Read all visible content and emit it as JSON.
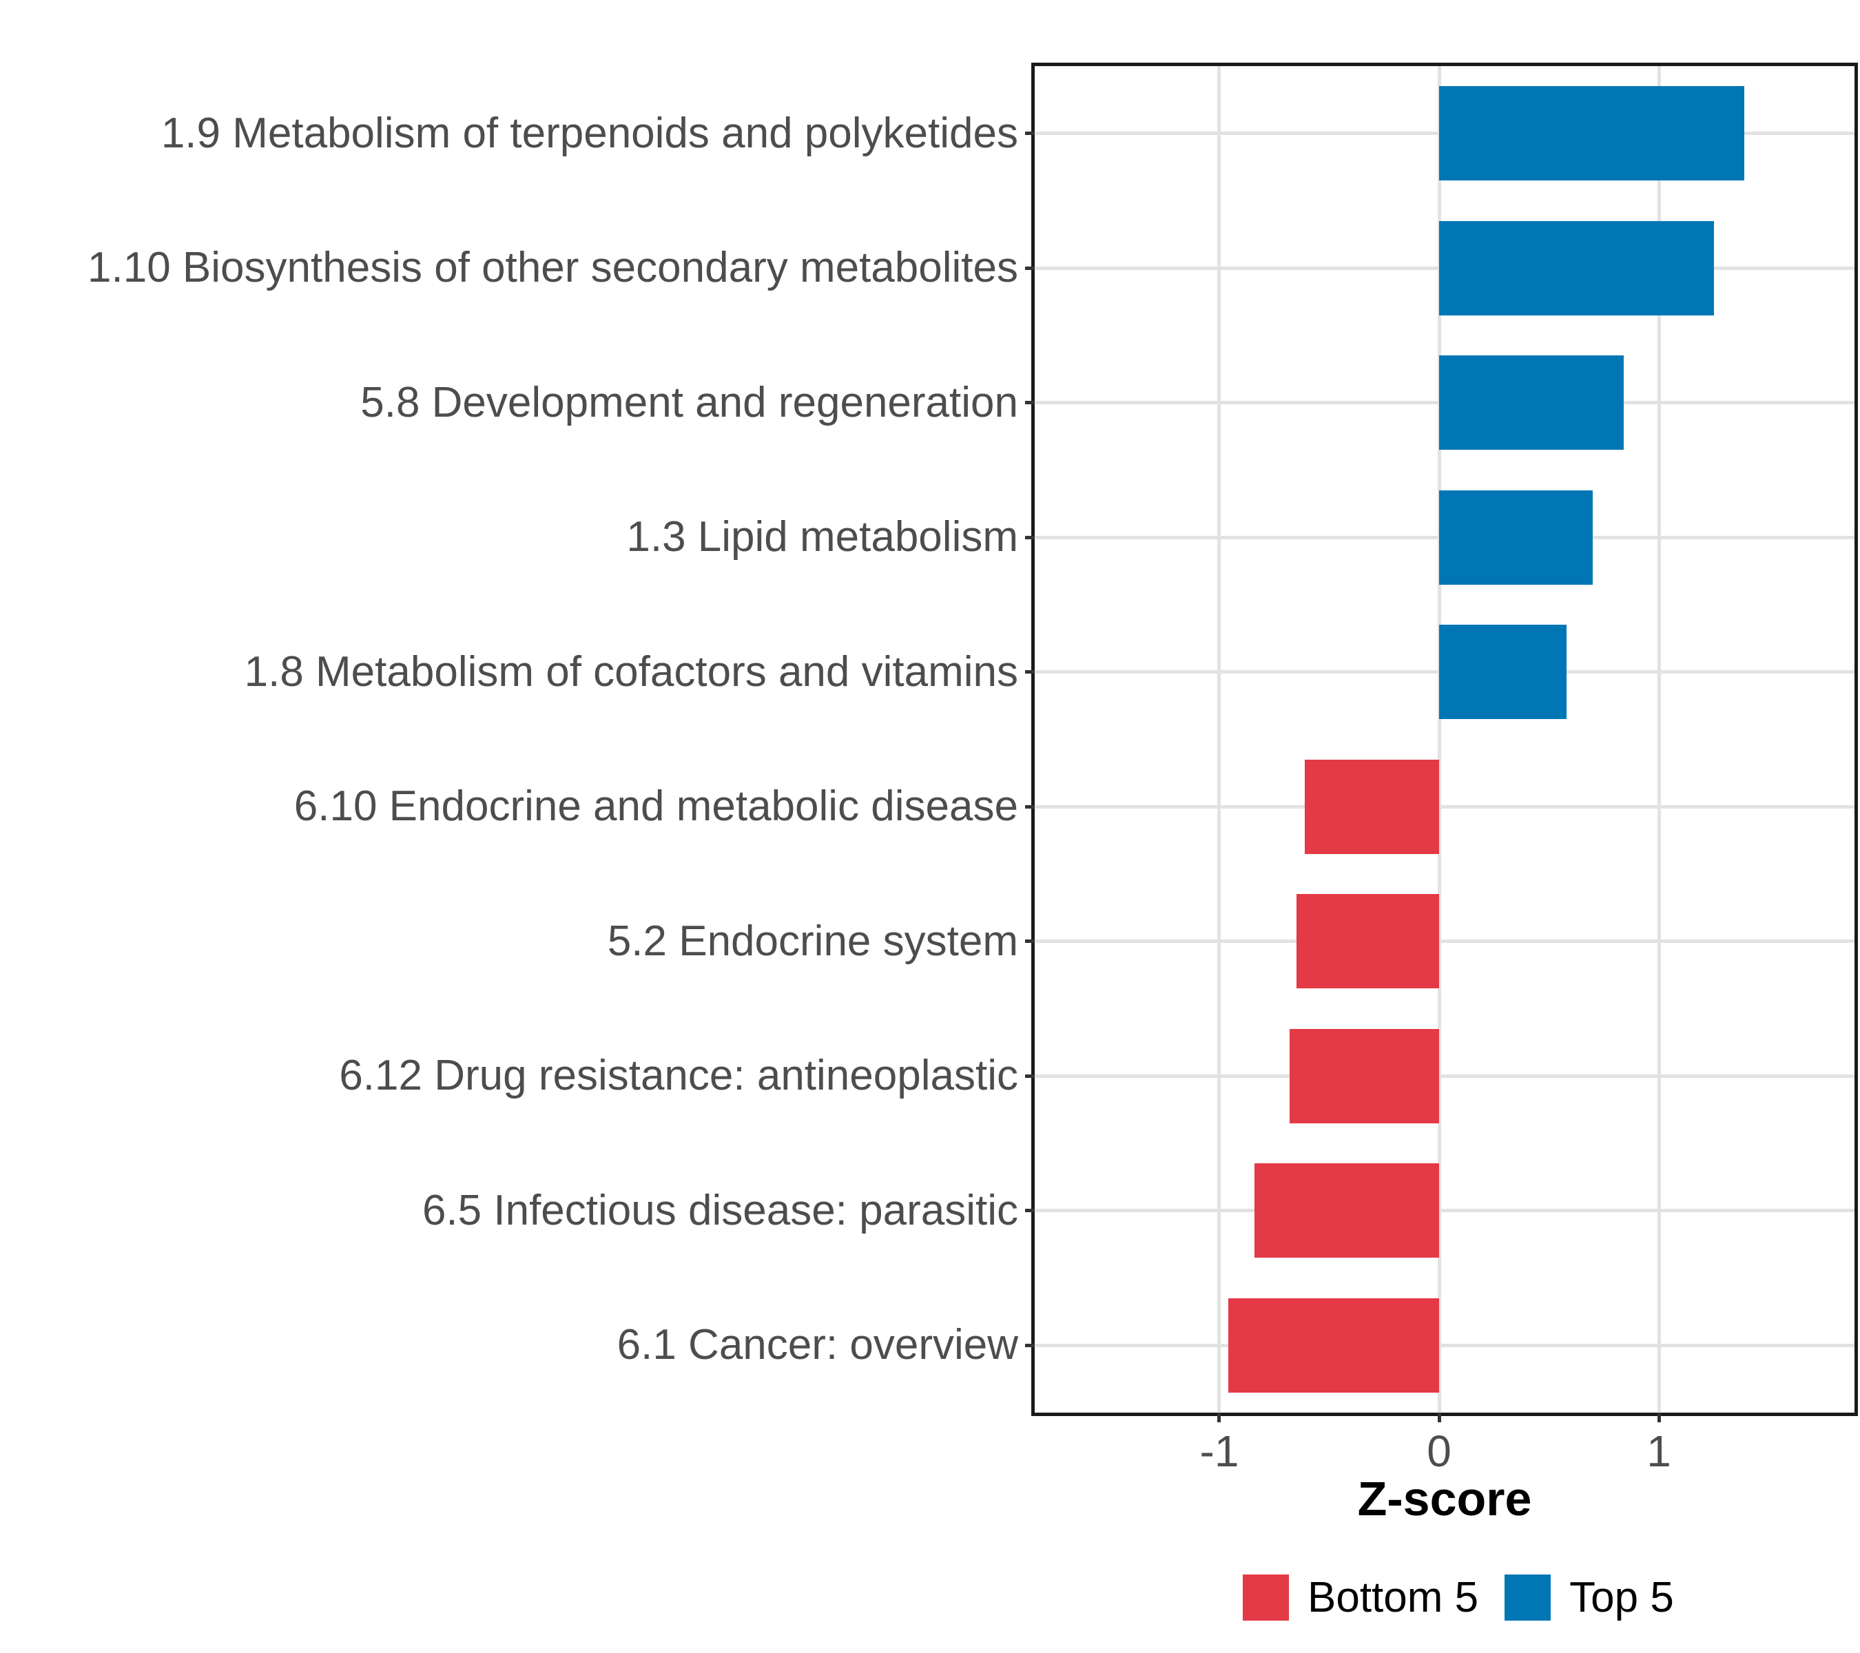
{
  "chart_data": {
    "type": "bar",
    "orientation": "horizontal",
    "xlabel": "Z-score",
    "ylabel": "",
    "categories": [
      "1.9 Metabolism of terpenoids and polyketides",
      "1.10 Biosynthesis of other secondary metabolites",
      "5.8 Development and regeneration",
      "1.3 Lipid metabolism",
      "1.8 Metabolism of cofactors and vitamins",
      "6.10 Endocrine and metabolic disease",
      "5.2 Endocrine system",
      "6.12 Drug resistance: antineoplastic",
      "6.5 Infectious disease: parasitic",
      "6.1 Cancer: overview"
    ],
    "values": [
      1.39,
      1.25,
      0.84,
      0.7,
      0.58,
      -0.61,
      -0.65,
      -0.68,
      -0.84,
      -0.96
    ],
    "groups": [
      "Top 5",
      "Top 5",
      "Top 5",
      "Top 5",
      "Top 5",
      "Bottom 5",
      "Bottom 5",
      "Bottom 5",
      "Bottom 5",
      "Bottom 5"
    ],
    "colors": {
      "top5": "#0076B5",
      "bottom5": "#E43946"
    },
    "xlim": [
      -1.84,
      1.89
    ],
    "x_ticks": [
      -1,
      0,
      1
    ],
    "x_tick_labels": [
      "-1",
      "0",
      "1"
    ],
    "grid": "major vertical at ticks, horizontal at category centers",
    "panel_border": "#1A1A1A",
    "gridline_color": "#E2E2E2",
    "axis_text_color": "#4D4D4D",
    "legend": {
      "position": "bottom",
      "entries": [
        {
          "label": "Bottom 5",
          "color": "#E43946"
        },
        {
          "label": "Top 5",
          "color": "#0076B5"
        }
      ]
    }
  }
}
